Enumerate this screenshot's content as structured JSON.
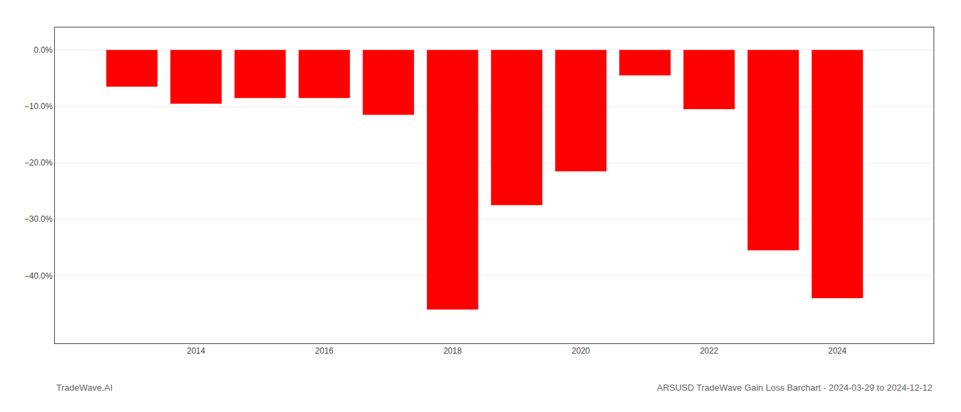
{
  "chart_data": {
    "type": "bar",
    "x": [
      2013,
      2014,
      2015,
      2016,
      2017,
      2018,
      2019,
      2020,
      2021,
      2022,
      2023,
      2024
    ],
    "values": [
      -6.5,
      -9.5,
      -8.5,
      -8.5,
      -11.5,
      -46.0,
      -27.5,
      -21.5,
      -4.5,
      -10.5,
      -35.5,
      -44.0
    ],
    "color": "#ff0000",
    "xlim": [
      2011.8,
      2025.5
    ],
    "xticks": [
      2014,
      2016,
      2018,
      2020,
      2022,
      2024
    ],
    "ylim": [
      -52,
      4
    ],
    "yticks": [
      {
        "value": 0.0,
        "label": "0.0%"
      },
      {
        "value": -10.0,
        "label": "−10.0%"
      },
      {
        "value": -20.0,
        "label": "−20.0%"
      },
      {
        "value": -30.0,
        "label": "−30.0%"
      },
      {
        "value": -40.0,
        "label": "−40.0%"
      }
    ],
    "grid": true,
    "annotations": [
      "TradeWave.AI",
      "ARSUSD TradeWave Gain Loss Barchart - 2024-03-29 to 2024-12-12"
    ]
  }
}
